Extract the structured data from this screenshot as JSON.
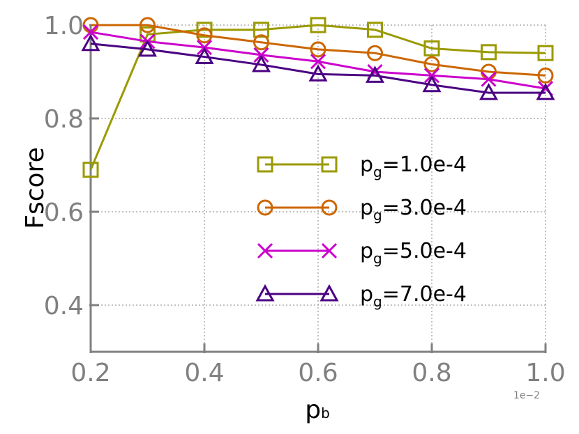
{
  "chart_data": {
    "type": "line",
    "title": "",
    "xlabel": "p",
    "xlabel_sub": "b",
    "ylabel": "Fscore",
    "x_offset_label": "1e−2",
    "xlim": [
      0.2,
      1.0
    ],
    "ylim": [
      0.3,
      1.0
    ],
    "x": [
      0.2,
      0.3,
      0.4,
      0.5,
      0.6,
      0.7,
      0.8,
      0.9,
      1.0
    ],
    "xticks": [
      0.2,
      0.4,
      0.6,
      0.8,
      1.0
    ],
    "xtick_labels": [
      "0.2",
      "0.4",
      "0.6",
      "0.8",
      "1.0"
    ],
    "yticks": [
      0.4,
      0.6,
      0.8,
      1.0
    ],
    "ytick_labels": [
      "0.4",
      "0.6",
      "0.8",
      "1.0"
    ],
    "grid": true,
    "legend_position": "center-right",
    "series": [
      {
        "name": "pg=1.0e-4",
        "label_main": "p",
        "label_sub": "g",
        "label_rest": "=1.0e-4",
        "marker": "square",
        "color": "#9a9a00",
        "values": [
          0.69,
          0.98,
          0.99,
          0.99,
          1.0,
          0.99,
          0.95,
          0.942,
          0.94
        ]
      },
      {
        "name": "pg=3.0e-4",
        "label_main": "p",
        "label_sub": "g",
        "label_rest": "=3.0e-4",
        "marker": "circle",
        "color": "#cc6600",
        "values": [
          1.0,
          1.0,
          0.978,
          0.963,
          0.948,
          0.94,
          0.916,
          0.9,
          0.892
        ]
      },
      {
        "name": "pg=5.0e-4",
        "label_main": "p",
        "label_sub": "g",
        "label_rest": "=5.0e-4",
        "marker": "x",
        "color": "#cc00cc",
        "values": [
          0.985,
          0.965,
          0.952,
          0.936,
          0.922,
          0.9,
          0.892,
          0.884,
          0.864
        ]
      },
      {
        "name": "pg=7.0e-4",
        "label_main": "p",
        "label_sub": "g",
        "label_rest": "=7.0e-4",
        "marker": "triangle",
        "color": "#4b0082",
        "values": [
          0.96,
          0.948,
          0.932,
          0.915,
          0.895,
          0.892,
          0.872,
          0.855,
          0.855
        ]
      }
    ]
  }
}
